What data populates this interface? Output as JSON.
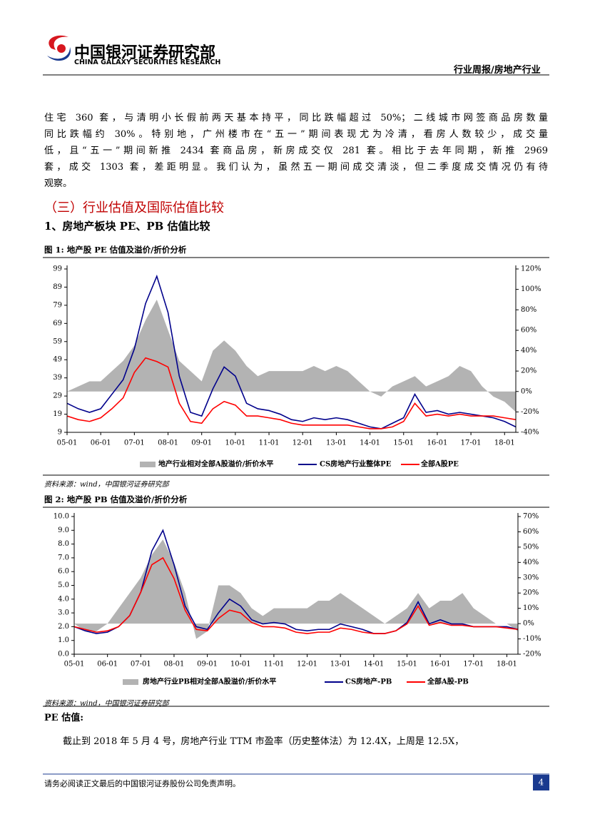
{
  "header": {
    "company_cn": "中国银河证券研究部",
    "company_en": "CHINA GALAXY SECURITIES RESEARCH",
    "report_type": "行业周报/房地产行业"
  },
  "body": {
    "paragraph_lines": [
      "住宅 360 套，与清明小长假前两天基本持平，同比跌幅超过 50%；二线城市网签商品房数量",
      "同比跌幅约 30%。特别地，广州楼市在“五一”期间表现尤为冷清，看房人数较少，成交量",
      "低，且“五一”期间新推 2434 套商品房，新房成交仅 281 套。相比于去年同期，新推 2969",
      "套，成交 1303 套，差距明显。我们认为，虽然五一期间成交清淡，但二季度成交情况仍有待",
      "观察。"
    ],
    "section_heading": "（三）行业估值及国际估值比较",
    "subheading": "1、房地产板块 PE、PB 估值比较",
    "pe_heading": "PE 估值:",
    "pe_text": "截止到 2018 年 5 月 4 号，房地产行业 TTM 市盈率（历史整体法）为 12.4X，上周是 12.5X，"
  },
  "footer": {
    "disclaimer": "请务必阅读正文最后的中国银河证券股份公司免责声明。",
    "page": "4"
  },
  "chart_data": [
    {
      "type": "line",
      "title": "图 1: 地产股 PE 估值及溢价/折价分析",
      "source": "资料来源：wind，中国银河证券研究部",
      "x": [
        "05-01",
        "05-05",
        "05-09",
        "06-01",
        "06-05",
        "06-09",
        "07-01",
        "07-05",
        "07-09",
        "08-01",
        "08-05",
        "08-09",
        "09-01",
        "09-05",
        "09-09",
        "10-01",
        "10-05",
        "10-09",
        "11-01",
        "11-05",
        "11-09",
        "12-01",
        "12-05",
        "12-09",
        "13-01",
        "13-05",
        "13-09",
        "14-01",
        "14-05",
        "14-09",
        "15-01",
        "15-05",
        "15-09",
        "16-01",
        "16-05",
        "16-09",
        "17-01",
        "17-05",
        "17-09",
        "18-01",
        "18-05"
      ],
      "xlim": [
        "05-01",
        "18-05"
      ],
      "xticks": [
        "05-01",
        "06-01",
        "07-01",
        "08-01",
        "09-01",
        "10-01",
        "11-01",
        "12-01",
        "13-01",
        "14-01",
        "15-01",
        "16-01",
        "17-01",
        "18-01"
      ],
      "ylim": [
        9,
        99
      ],
      "yticks": [
        9,
        19,
        29,
        39,
        49,
        59,
        69,
        79,
        89,
        99
      ],
      "y2lim": [
        -40,
        120
      ],
      "y2ticks": [
        {
          "value": -40,
          "label": "-40%"
        },
        {
          "value": -20,
          "label": "-20%"
        },
        {
          "value": 0,
          "label": "0%"
        },
        {
          "value": 20,
          "label": "20%"
        },
        {
          "value": 40,
          "label": "40%"
        },
        {
          "value": 60,
          "label": "60%"
        },
        {
          "value": 80,
          "label": "80%"
        },
        {
          "value": 100,
          "label": "100%"
        },
        {
          "value": 120,
          "label": "120%"
        }
      ],
      "series": [
        {
          "name": "地产行业相对全部A股溢价/折价水平",
          "color": "#b3b3b3",
          "kind": "area",
          "axis": "y2",
          "values": [
            0,
            5,
            10,
            10,
            20,
            30,
            45,
            70,
            90,
            60,
            30,
            20,
            10,
            40,
            50,
            40,
            25,
            15,
            20,
            20,
            20,
            20,
            25,
            20,
            25,
            20,
            10,
            0,
            -5,
            5,
            10,
            15,
            5,
            10,
            15,
            25,
            20,
            5,
            -5,
            -10,
            -20
          ]
        },
        {
          "name": "CS房地产行业整体PE",
          "color": "#00008b",
          "values": [
            25,
            22,
            20,
            22,
            30,
            38,
            55,
            80,
            95,
            75,
            40,
            20,
            18,
            33,
            45,
            40,
            25,
            22,
            21,
            19,
            16,
            15,
            17,
            16,
            17,
            16,
            14,
            12,
            11,
            14,
            17,
            30,
            20,
            21,
            19,
            20,
            19,
            18,
            17,
            15,
            12
          ]
        },
        {
          "name": "全部A股PE",
          "color": "#ff0000",
          "values": [
            18,
            16,
            15,
            17,
            22,
            28,
            42,
            50,
            48,
            45,
            25,
            15,
            14,
            22,
            26,
            24,
            18,
            18,
            17,
            16,
            14,
            13,
            13,
            13,
            13,
            13,
            12,
            11,
            11,
            12,
            15,
            25,
            18,
            19,
            18,
            19,
            18,
            18,
            18,
            17,
            16
          ]
        }
      ]
    },
    {
      "type": "line",
      "title": "图 2: 地产股 PB 估值及溢价/折价分析",
      "source": "资料来源：wind，中国银河证券研究部",
      "x": [
        "05-01",
        "05-05",
        "05-09",
        "06-01",
        "06-05",
        "06-09",
        "07-01",
        "07-05",
        "07-09",
        "08-01",
        "08-05",
        "08-09",
        "09-01",
        "09-05",
        "09-09",
        "10-01",
        "10-05",
        "10-09",
        "11-01",
        "11-05",
        "11-09",
        "12-01",
        "12-05",
        "12-09",
        "13-01",
        "13-05",
        "13-09",
        "14-01",
        "14-05",
        "14-09",
        "15-01",
        "15-05",
        "15-09",
        "16-01",
        "16-05",
        "16-09",
        "17-01",
        "17-05",
        "17-09",
        "18-01",
        "18-05"
      ],
      "xlim": [
        "05-01",
        "18-05"
      ],
      "xticks": [
        "05-01",
        "06-01",
        "07-01",
        "08-01",
        "09-01",
        "10-01",
        "11-01",
        "12-01",
        "13-01",
        "14-01",
        "15-01",
        "16-01",
        "17-01",
        "18-01"
      ],
      "ylim": [
        0,
        10
      ],
      "yticks": [
        {
          "value": 0,
          "label": "0.0"
        },
        {
          "value": 1,
          "label": "1.0"
        },
        {
          "value": 2,
          "label": "2.0"
        },
        {
          "value": 3,
          "label": "3.0"
        },
        {
          "value": 4,
          "label": "4.0"
        },
        {
          "value": 5,
          "label": "5.0"
        },
        {
          "value": 6,
          "label": "6.0"
        },
        {
          "value": 7,
          "label": "7.0"
        },
        {
          "value": 8,
          "label": "8.0"
        },
        {
          "value": 9,
          "label": "9.0"
        },
        {
          "value": 10,
          "label": "10.0"
        }
      ],
      "y2lim": [
        -20,
        70
      ],
      "y2ticks": [
        {
          "value": -20,
          "label": "-20%"
        },
        {
          "value": -10,
          "label": "-10%"
        },
        {
          "value": 0,
          "label": "0%"
        },
        {
          "value": 10,
          "label": "10%"
        },
        {
          "value": 20,
          "label": "20%"
        },
        {
          "value": 30,
          "label": "30%"
        },
        {
          "value": 40,
          "label": "40%"
        },
        {
          "value": 50,
          "label": "50%"
        },
        {
          "value": 60,
          "label": "60%"
        },
        {
          "value": 70,
          "label": "70%"
        }
      ],
      "series": [
        {
          "name": "房地产行业PB相对全部A股溢价/折价水平",
          "color": "#b3b3b3",
          "kind": "area",
          "axis": "y2",
          "values": [
            0,
            -5,
            -5,
            0,
            10,
            20,
            30,
            45,
            55,
            40,
            20,
            -10,
            -5,
            25,
            25,
            20,
            10,
            5,
            10,
            10,
            10,
            10,
            15,
            15,
            20,
            15,
            10,
            5,
            0,
            5,
            10,
            20,
            10,
            15,
            15,
            20,
            10,
            5,
            0,
            0,
            -5
          ]
        },
        {
          "name": "CS房地产-PB",
          "color": "#00008b",
          "values": [
            2.0,
            1.7,
            1.5,
            1.6,
            2.0,
            2.8,
            4.5,
            7.5,
            9.0,
            6.5,
            3.5,
            2.0,
            1.8,
            3.0,
            4.0,
            3.5,
            2.5,
            2.2,
            2.3,
            2.2,
            1.8,
            1.7,
            1.8,
            1.8,
            2.2,
            2.0,
            1.8,
            1.5,
            1.5,
            1.7,
            2.3,
            3.8,
            2.2,
            2.5,
            2.2,
            2.2,
            2.0,
            2.0,
            2.0,
            2.0,
            1.8
          ]
        },
        {
          "name": "全部A股-PB",
          "color": "#ff0000",
          "values": [
            2.0,
            1.8,
            1.6,
            1.7,
            2.0,
            2.8,
            4.5,
            6.5,
            7.0,
            5.5,
            3.2,
            1.8,
            1.7,
            2.6,
            3.2,
            3.0,
            2.3,
            2.0,
            2.0,
            1.9,
            1.6,
            1.5,
            1.6,
            1.6,
            1.9,
            1.8,
            1.6,
            1.5,
            1.5,
            1.7,
            2.2,
            3.5,
            2.1,
            2.3,
            2.1,
            2.1,
            2.0,
            2.0,
            2.0,
            1.9,
            1.8
          ]
        }
      ]
    }
  ]
}
